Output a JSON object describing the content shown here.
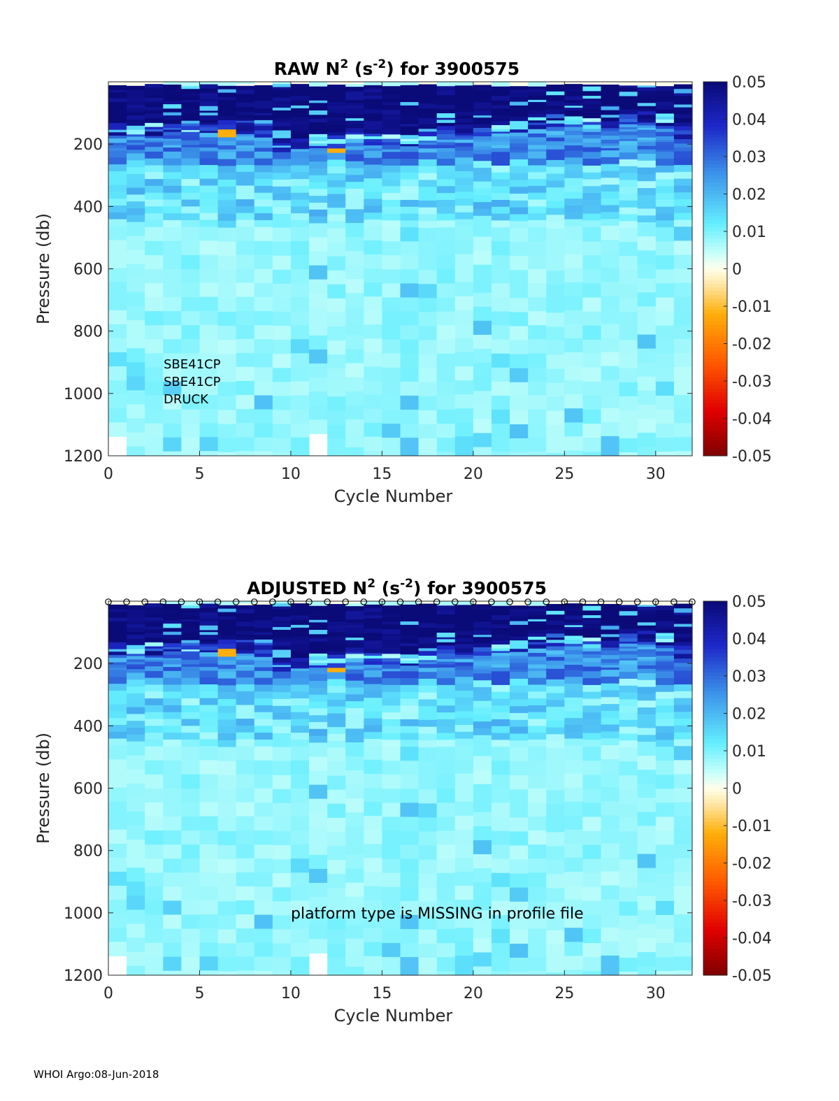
{
  "footer": "WHOI Argo:08-Jun-2018",
  "chart_data": [
    {
      "type": "heatmap",
      "title_parts": [
        "RAW N",
        "2",
        " (s",
        "-2",
        ") for 3900575"
      ],
      "xlabel": "Cycle Number",
      "ylabel": "Pressure (db)",
      "xlim": [
        0,
        32
      ],
      "ylim": [
        1200,
        0
      ],
      "xticks": [
        "0",
        "5",
        "10",
        "15",
        "20",
        "25",
        "30"
      ],
      "yticks": [
        "200",
        "400",
        "600",
        "800",
        "1000",
        "1200"
      ],
      "colorbar_ticks": [
        "0.05",
        "0.04",
        "0.03",
        "0.02",
        "0.01",
        "0",
        "-0.01",
        "-0.02",
        "-0.03",
        "-0.04",
        "-0.05"
      ],
      "clim": [
        -0.05,
        0.05
      ],
      "annotation_lines": [
        "SBE41CP",
        "SBE41CP",
        "DRUCK"
      ],
      "markers": false
    },
    {
      "type": "heatmap",
      "title_parts": [
        "ADJUSTED N",
        "2",
        " (s",
        "-2",
        ") for 3900575"
      ],
      "xlabel": "Cycle Number",
      "ylabel": "Pressure (db)",
      "xlim": [
        0,
        32
      ],
      "ylim": [
        1200,
        0
      ],
      "xticks": [
        "0",
        "5",
        "10",
        "15",
        "20",
        "25",
        "30"
      ],
      "yticks": [
        "200",
        "400",
        "600",
        "800",
        "1000",
        "1200"
      ],
      "colorbar_ticks": [
        "0.05",
        "0.04",
        "0.03",
        "0.02",
        "0.01",
        "0",
        "-0.01",
        "-0.02",
        "-0.03",
        "-0.04",
        "-0.05"
      ],
      "clim": [
        -0.05,
        0.05
      ],
      "annotation_lines": [
        "platform type is MISSING in profile file"
      ],
      "markers": true
    }
  ],
  "colors": {
    "deep_blue": "#0a0a78",
    "axis": "#262626"
  }
}
